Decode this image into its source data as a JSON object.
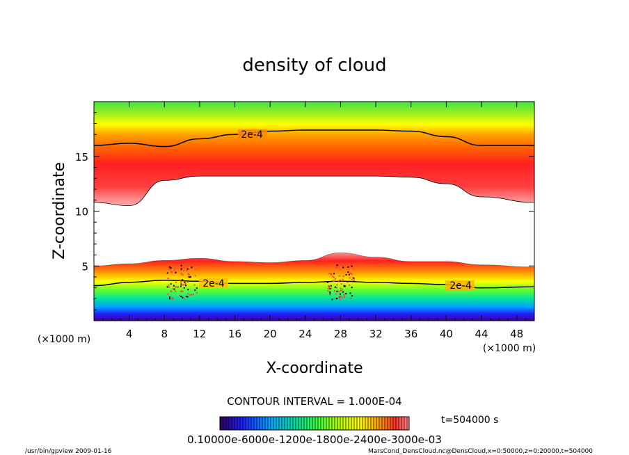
{
  "chart_data": {
    "type": "heatmap",
    "title": "density of cloud",
    "xlabel": "X-coordinate",
    "ylabel": "Z-coordinate",
    "x_unit": "(×1000 m)",
    "y_unit": "(×1000 m)",
    "xlim": [
      0,
      50
    ],
    "ylim": [
      0,
      20
    ],
    "x_ticks": [
      "4",
      "8",
      "12",
      "16",
      "20",
      "24",
      "28",
      "32",
      "36",
      "40",
      "44",
      "48"
    ],
    "y_ticks": [
      "5",
      "10",
      "15"
    ],
    "contour_interval_text": "CONTOUR INTERVAL = 1.000E-04",
    "contour_label": "2e-4",
    "time_label": "t=504000 s",
    "colorbar_text": "0.10000e-6000e-1200e-1800e-2400e-3000e-03",
    "colorbar_range": [
      1e-10,
      0.0003
    ],
    "colormap": [
      "#3c0080",
      "#2020ff",
      "#00b0ff",
      "#00e0a0",
      "#40ff40",
      "#c0ff00",
      "#ffff00",
      "#ffa000",
      "#ff3030",
      "#ff9090"
    ],
    "upper_layer": {
      "top_contour_z": [
        16.0,
        16.2,
        15.9,
        16.6,
        17.0,
        17.3,
        17.4,
        17.4,
        17.4,
        17.3,
        16.8,
        16.0,
        16.0
      ],
      "base_z": [
        10.8,
        10.5,
        12.8,
        13.2,
        13.2,
        13.2,
        13.2,
        13.2,
        13.2,
        13.1,
        12.5,
        11.3,
        10.8
      ],
      "x": [
        0,
        4,
        8,
        12,
        16,
        20,
        24,
        28,
        32,
        36,
        40,
        44,
        50
      ]
    },
    "lower_layer": {
      "top_z": [
        5.0,
        5.2,
        5.5,
        5.7,
        5.4,
        5.3,
        5.5,
        6.2,
        5.8,
        5.4,
        5.4,
        5.1,
        4.9
      ],
      "contour_z": [
        3.2,
        3.5,
        3.7,
        3.6,
        3.4,
        3.4,
        3.5,
        3.6,
        3.5,
        3.4,
        3.3,
        3.0,
        3.1
      ],
      "x": [
        0,
        4,
        8,
        12,
        16,
        20,
        24,
        28,
        32,
        36,
        40,
        44,
        50
      ]
    }
  },
  "footer": {
    "left": "/usr/bin/gpview  2009-01-16",
    "right": "MarsCond_DensCloud.nc@DensCloud,x=0:50000,z=0:20000,t=504000"
  }
}
